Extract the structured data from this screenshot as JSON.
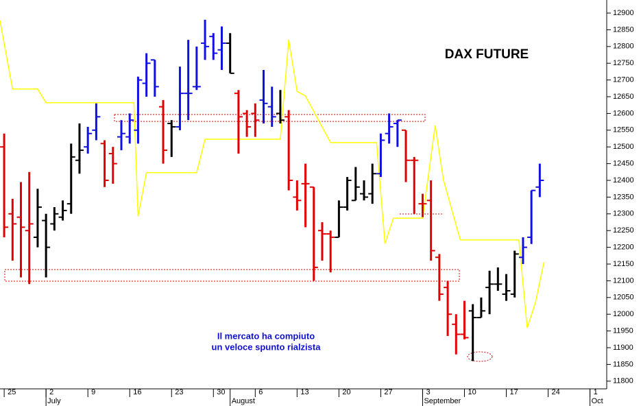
{
  "chart_data": {
    "type": "ohlc",
    "title": "DAX FUTURE",
    "annotation": [
      "Il mercato ha compiuto",
      "un veloce spunto rialzista"
    ],
    "open": [
      12500,
      12300,
      12290,
      12250,
      12230,
      12280,
      12270,
      12290,
      12330,
      12460,
      12500,
      12550,
      12510,
      12480,
      12530,
      12530,
      12550,
      12690,
      12760,
      12620,
      12570,
      12560,
      12660,
      12680,
      12810,
      12830,
      12790,
      12810,
      12660,
      12600,
      12600,
      12640,
      12620,
      12600,
      12590,
      12350,
      12390,
      12380,
      12250,
      12240,
      12230,
      12320,
      12340,
      12360,
      12360,
      12420,
      12540,
      12570,
      12550,
      12460,
      12330,
      12340,
      12170,
      12080,
      11970,
      11940,
      12010,
      11990,
      12080,
      12090,
      12060,
      12060,
      12170,
      12230,
      12380
    ],
    "high": [
      12540,
      12345,
      12395,
      12425,
      12375,
      12300,
      12320,
      12340,
      12510,
      12570,
      12560,
      12630,
      12520,
      12500,
      12580,
      12600,
      12710,
      12780,
      12760,
      12640,
      12580,
      12740,
      12820,
      12800,
      12880,
      12840,
      12860,
      12840,
      12670,
      12610,
      12630,
      12730,
      12680,
      12670,
      12610,
      12400,
      12450,
      12380,
      12275,
      12250,
      12340,
      12410,
      12440,
      12400,
      12450,
      12540,
      12600,
      12580,
      12550,
      12470,
      12360,
      12400,
      12180,
      12100,
      12000,
      12040,
      12030,
      12050,
      12130,
      12140,
      12120,
      12190,
      12230,
      12370,
      12450
    ],
    "low": [
      12230,
      12160,
      12110,
      12090,
      12200,
      12110,
      12250,
      12280,
      12300,
      12420,
      12480,
      12520,
      12380,
      12390,
      12490,
      12510,
      12510,
      12650,
      12650,
      12450,
      12470,
      12550,
      12580,
      12670,
      12760,
      12760,
      12730,
      12720,
      12480,
      12530,
      12530,
      12570,
      12560,
      12570,
      12370,
      12310,
      12260,
      12100,
      12160,
      12125,
      12230,
      12310,
      12340,
      12340,
      12330,
      12410,
      12510,
      12500,
      12395,
      12300,
      12290,
      12160,
      12040,
      11935,
      11880,
      11925,
      11860,
      11990,
      12000,
      12070,
      12040,
      12050,
      12150,
      12210,
      12350
    ],
    "close": [
      12260,
      12270,
      12260,
      12270,
      12320,
      12200,
      12300,
      12310,
      12470,
      12490,
      12540,
      12590,
      12400,
      12450,
      12540,
      12580,
      12700,
      12750,
      12680,
      12490,
      12560,
      12660,
      12660,
      12680,
      12800,
      12780,
      12810,
      12720,
      12590,
      12560,
      12580,
      12630,
      12590,
      12580,
      12400,
      12340,
      12390,
      12140,
      12240,
      12230,
      12320,
      12400,
      12380,
      12350,
      12420,
      12520,
      12560,
      12580,
      12460,
      12460,
      12330,
      12190,
      12060,
      12000,
      11940,
      11930,
      11990,
      12010,
      12090,
      12090,
      12070,
      12180,
      12200,
      12370,
      12400
    ],
    "colors": [
      "#e00000",
      "#e00000",
      "#e00000",
      "#e00000",
      "#000000",
      "#000000",
      "#000000",
      "#000000",
      "#000000",
      "#000000",
      "#1010e0",
      "#1010e0",
      "#e00000",
      "#e00000",
      "#1010e0",
      "#1010e0",
      "#1010e0",
      "#1010e0",
      "#1010e0",
      "#e00000",
      "#000000",
      "#1010e0",
      "#1010e0",
      "#1010e0",
      "#1010e0",
      "#1010e0",
      "#1010e0",
      "#000000",
      "#e00000",
      "#e00000",
      "#e00000",
      "#1010e0",
      "#1010e0",
      "#000000",
      "#e00000",
      "#e00000",
      "#e00000",
      "#e00000",
      "#e00000",
      "#e00000",
      "#000000",
      "#000000",
      "#000000",
      "#000000",
      "#000000",
      "#1010e0",
      "#1010e0",
      "#1010e0",
      "#e00000",
      "#e00000",
      "#e00000",
      "#e00000",
      "#e00000",
      "#e00000",
      "#e00000",
      "#e00000",
      "#000000",
      "#000000",
      "#000000",
      "#000000",
      "#000000",
      "#000000",
      "#1010e0",
      "#1010e0",
      "#1010e0"
    ],
    "indicator": {
      "color": "#ffff00",
      "x": [
        -0.5,
        1,
        4,
        5,
        15.5,
        16,
        17,
        23,
        24,
        33,
        34,
        35,
        36,
        39,
        44.5,
        45.5,
        46.5,
        50,
        51.5,
        52.5,
        54.5,
        61.5,
        62.5,
        63.5,
        64.5
      ],
      "values": [
        12877,
        12673,
        12673,
        12632,
        12632,
        12293,
        12423,
        12423,
        12523,
        12523,
        12820,
        12666,
        12652,
        12513,
        12513,
        12211,
        12287,
        12287,
        12564,
        12400,
        12222,
        12222,
        11959,
        12037,
        12156
      ]
    },
    "xlim": [
      -0.5,
      72
    ],
    "ylim": [
      11777,
      12939
    ],
    "xticks": [
      {
        "value": 0,
        "label": "25"
      },
      {
        "value": 5,
        "label": "2"
      },
      {
        "value": 10,
        "label": "9"
      },
      {
        "value": 15,
        "label": "16"
      },
      {
        "value": 20,
        "label": "23"
      },
      {
        "value": 25,
        "label": "30"
      },
      {
        "value": 30,
        "label": "6"
      },
      {
        "value": 35,
        "label": "13"
      },
      {
        "value": 40,
        "label": "20"
      },
      {
        "value": 45,
        "label": "27"
      },
      {
        "value": 50,
        "label": "3"
      },
      {
        "value": 55,
        "label": "10"
      },
      {
        "value": 60,
        "label": "17"
      },
      {
        "value": 65,
        "label": "24"
      },
      {
        "value": 70,
        "label": "1"
      }
    ],
    "months": [
      {
        "value": 5,
        "label": "July"
      },
      {
        "value": 27,
        "label": "August"
      },
      {
        "value": 50,
        "label": "September"
      },
      {
        "value": 70,
        "label": "Oct"
      }
    ],
    "yticks": [
      11800,
      11850,
      11900,
      11950,
      12000,
      12050,
      12100,
      12150,
      12200,
      12250,
      12300,
      12350,
      12400,
      12450,
      12500,
      12550,
      12600,
      12650,
      12700,
      12750,
      12800,
      12850,
      12900
    ]
  }
}
